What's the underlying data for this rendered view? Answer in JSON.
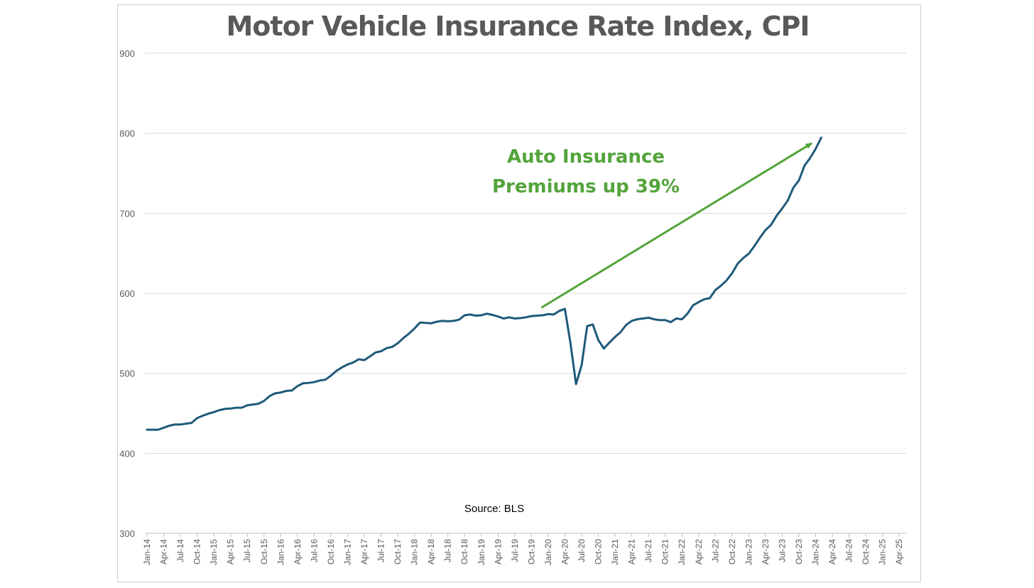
{
  "chart_data": {
    "type": "line",
    "title": "Motor Vehicle Insurance Rate Index, CPI",
    "xlabel": "",
    "ylabel": "",
    "ylim": [
      300,
      900
    ],
    "yticks": [
      300,
      400,
      500,
      600,
      700,
      800,
      900
    ],
    "grid": true,
    "legend": "none",
    "x_tick_labels": [
      "Jan-14",
      "Apr-14",
      "Jul-14",
      "Oct-14",
      "Jan-15",
      "Apr-15",
      "Jul-15",
      "Oct-15",
      "Jan-16",
      "Apr-16",
      "Jul-16",
      "Oct-16",
      "Jan-17",
      "Apr-17",
      "Jul-17",
      "Oct-17",
      "Jan-18",
      "Apr-18",
      "Jul-18",
      "Oct-18",
      "Jan-19",
      "Apr-19",
      "Jul-19",
      "Oct-19",
      "Jan-20",
      "Apr-20",
      "Jul-20",
      "Oct-20",
      "Jan-21",
      "Apr-21",
      "Jul-21",
      "Oct-21",
      "Jan-22",
      "Apr-22",
      "Jul-22",
      "Oct-22",
      "Jan-23",
      "Apr-23",
      "Jul-23",
      "Oct-23",
      "Jan-24",
      "Apr-24",
      "Jul-24",
      "Oct-24",
      "Jan-25",
      "Apr-25"
    ],
    "series": [
      {
        "color": "#1f5a7a",
        "x_start": "Jan-14",
        "frequency": "monthly",
        "values": [
          429.5,
          429.5,
          429.5,
          432,
          434.5,
          436,
          436,
          437,
          438,
          444,
          447,
          449.5,
          451.5,
          454,
          455.5,
          456,
          457,
          457,
          460,
          461,
          462,
          465.5,
          471.5,
          475,
          476,
          478,
          478.5,
          484,
          487.5,
          488,
          489,
          491,
          492,
          497,
          503,
          507.5,
          511,
          513.5,
          517.5,
          516.5,
          521,
          526,
          527.5,
          531.5,
          533,
          537.5,
          544,
          549.5,
          556,
          563.5,
          563,
          562.5,
          564.5,
          565.5,
          565,
          565.5,
          567,
          572.5,
          573.5,
          572,
          572.5,
          574.5,
          573,
          571,
          568.5,
          570,
          568.5,
          569,
          570,
          571.5,
          572,
          572.5,
          574,
          573.5,
          578,
          580.5,
          537.5,
          486.5,
          510,
          559,
          561,
          541.5,
          531,
          538.5,
          545.5,
          551.5,
          560.5,
          565.5,
          567.5,
          568.5,
          569.5,
          567.5,
          566.5,
          566.5,
          564,
          568.5,
          567.5,
          574.5,
          585,
          589,
          592.5,
          594,
          604,
          609.5,
          616,
          625,
          637,
          644,
          649.5,
          659,
          669.5,
          679,
          685.5,
          697,
          706,
          716,
          732,
          741,
          759.5,
          769,
          780.5,
          794.5
        ]
      }
    ],
    "annotations": [
      {
        "text_line1": "Auto Insurance",
        "text_line2": "Premiums up 39%",
        "color": "#53a43b",
        "arrow_from": [
          "Oct-19",
          582
        ],
        "arrow_to": [
          "Dec-23",
          790
        ]
      },
      {
        "text": "Source: BLS",
        "color": "#000000"
      }
    ],
    "colors": {
      "line": "#1f5a7a",
      "annotation": "#53a43b",
      "grid": "#d9d9d9",
      "axis_text": "#595959",
      "title": "#595959"
    }
  }
}
